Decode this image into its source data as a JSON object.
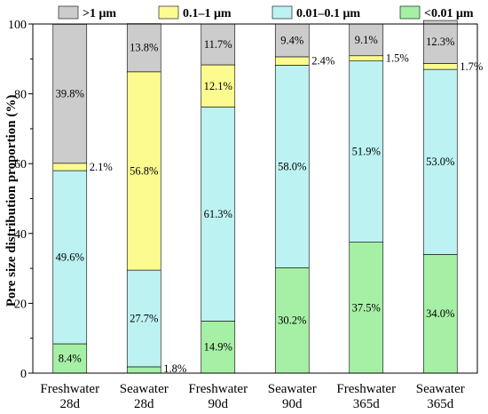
{
  "chart_data": {
    "type": "bar",
    "stacked": true,
    "ylabel": "Pore size distribution proportion (%)",
    "xlabel": "",
    "ylim": [
      0,
      100
    ],
    "yticks": [
      0,
      20,
      40,
      60,
      80,
      100
    ],
    "legend_position": "top",
    "categories": [
      [
        "Freshwater",
        "28d"
      ],
      [
        "Seawater",
        "28d"
      ],
      [
        "Freshwater",
        "90d"
      ],
      [
        "Seawater",
        "90d"
      ],
      [
        "Freshwater",
        "365d"
      ],
      [
        "Seawater",
        "365d"
      ]
    ],
    "series": [
      {
        "name": "<0.01 μm",
        "color": "#a5f0a5",
        "values": [
          8.4,
          1.8,
          14.9,
          30.2,
          37.5,
          34.0
        ],
        "labels": [
          "8.4%",
          "1.8%",
          "14.9%",
          "30.2%",
          "37.5%",
          "34.0%"
        ]
      },
      {
        "name": "0.01–0.1 μm",
        "color": "#bdf2f2",
        "values": [
          49.6,
          27.7,
          61.3,
          58.0,
          51.9,
          53.0
        ],
        "labels": [
          "49.6%",
          "27.7%",
          "61.3%",
          "58.0%",
          "51.9%",
          "53.0%"
        ]
      },
      {
        "name": "0.1–1 μm",
        "color": "#fbfb90",
        "values": [
          2.1,
          56.8,
          12.1,
          2.4,
          1.5,
          1.7
        ],
        "labels": [
          "2.1%",
          "56.8%",
          "12.1%",
          "2.4%",
          "1.5%",
          "1.7%"
        ]
      },
      {
        "name": ">1 μm",
        "color": "#cccccc",
        "values": [
          39.8,
          13.8,
          11.7,
          9.4,
          9.1,
          12.3
        ],
        "labels": [
          "39.8%",
          "13.8%",
          "11.7%",
          "9.4%",
          "9.1%",
          "12.3%"
        ]
      }
    ],
    "legend_order": [
      ">1 μm",
      "0.1–1 μm",
      "0.01–0.1 μm",
      "<0.01 μm"
    ]
  }
}
